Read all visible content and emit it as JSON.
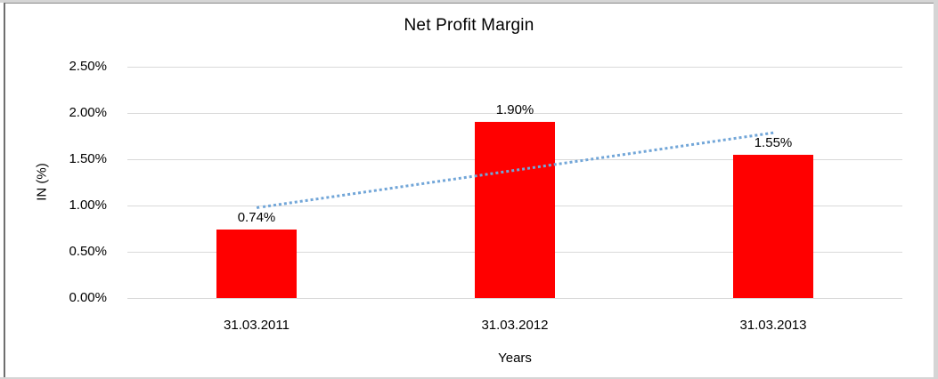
{
  "chart_data": {
    "type": "bar",
    "title": "Net Profit Margin",
    "xlabel": "Years",
    "ylabel": "IN (%)",
    "categories": [
      "31.03.2011",
      "31.03.2012",
      "31.03.2013"
    ],
    "values": [
      0.74,
      1.9,
      1.55
    ],
    "value_labels": [
      "0.74%",
      "1.90%",
      "1.55%"
    ],
    "y_ticks": [
      "2.50%",
      "2.00%",
      "1.50%",
      "1.00%",
      "0.50%",
      "0.00%"
    ],
    "ylim": [
      0,
      2.5
    ],
    "grid": "horizontal-major",
    "legend": "none",
    "bar_color": "#ff0000",
    "gridline_color": "#d9d9d9",
    "text_color": "#000000",
    "trendline": {
      "kind": "linear-dotted",
      "color": "#72a6d8",
      "start_value": 0.99,
      "end_value": 1.8
    }
  }
}
